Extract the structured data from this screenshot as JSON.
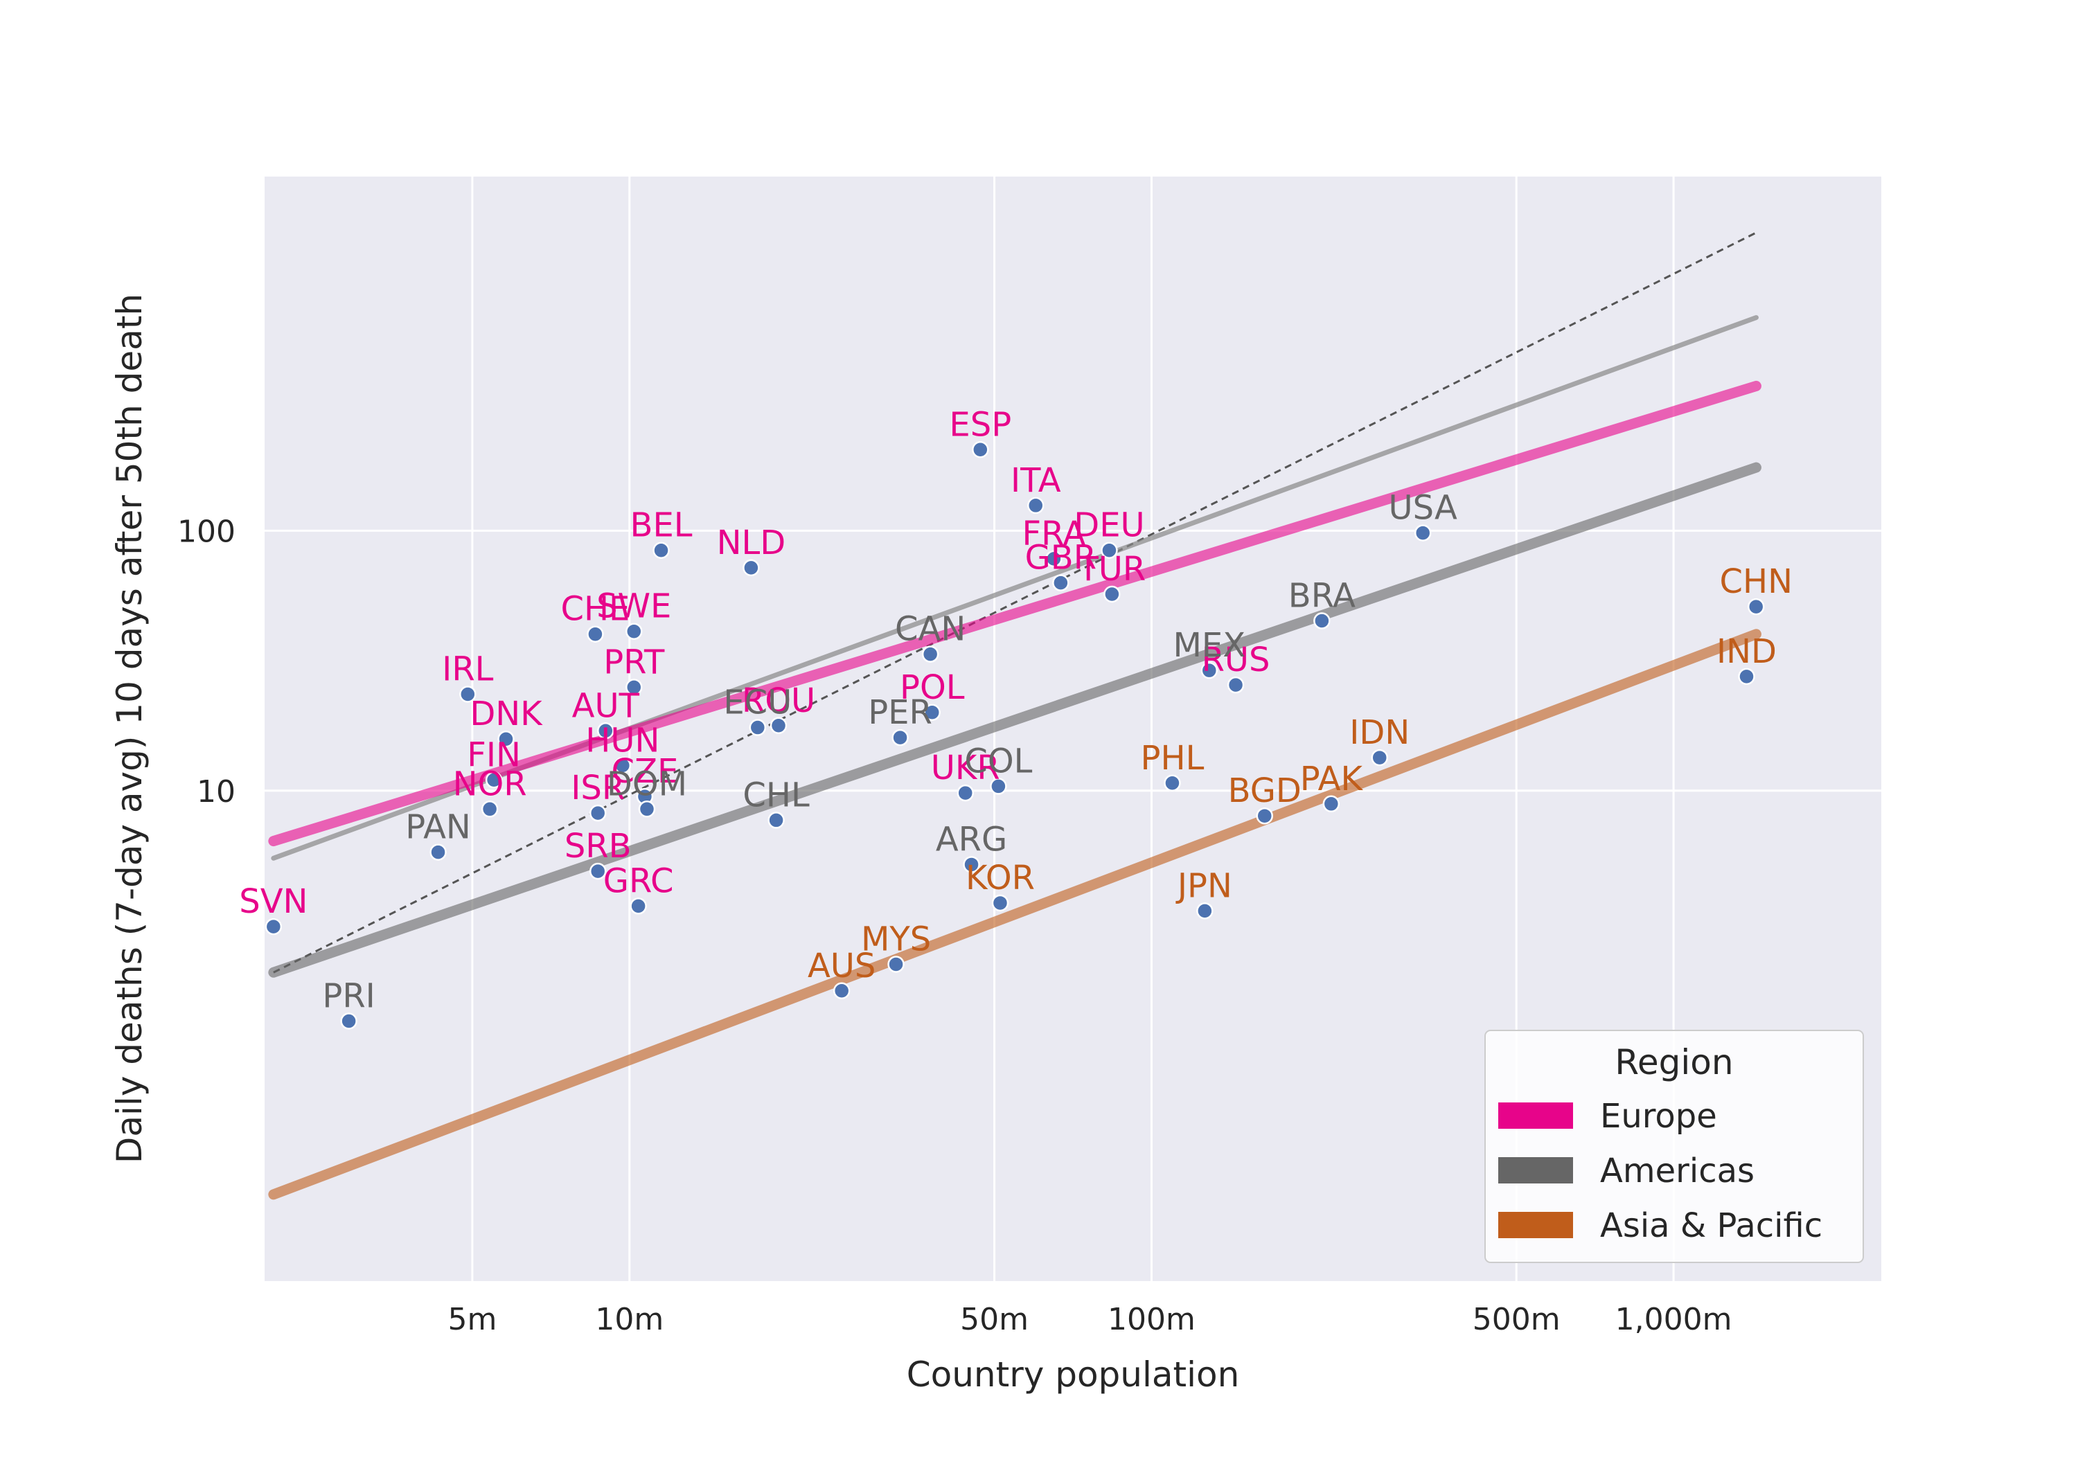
{
  "chart_data": {
    "type": "scatter",
    "title": "",
    "xlabel": "Country population",
    "ylabel": "Daily deaths (7-day avg) 10 days after 50th death",
    "x_scale": "log",
    "y_scale": "log",
    "xlim": [
      2000000,
      2500000000
    ],
    "ylim": [
      0.13,
      2300
    ],
    "x_ticks": [
      {
        "value": 5000000,
        "label": "5m"
      },
      {
        "value": 10000000,
        "label": "10m"
      },
      {
        "value": 50000000,
        "label": "50m"
      },
      {
        "value": 100000000,
        "label": "100m"
      },
      {
        "value": 500000000,
        "label": "500m"
      },
      {
        "value": 1000000000,
        "label": "1,000m"
      }
    ],
    "y_ticks": [
      {
        "value": 10,
        "label": "10"
      },
      {
        "value": 100,
        "label": "100"
      }
    ],
    "grid": true,
    "colors": {
      "Europe": "#e7048a",
      "Americas": "#666666",
      "Asia & Pacific": "#c05d1b",
      "marker": "#4c72b0",
      "background": "#eaeaf2",
      "grid": "#ffffff"
    },
    "legend": {
      "title": "Region",
      "position": "bottom-right",
      "entries": [
        "Europe",
        "Americas",
        "Asia & Pacific"
      ]
    },
    "points": [
      {
        "label": "SVN",
        "region": "Europe",
        "x": 2080000,
        "y": 3.0
      },
      {
        "label": "IRL",
        "region": "Europe",
        "x": 4900000,
        "y": 23.5
      },
      {
        "label": "DNK",
        "region": "Europe",
        "x": 5800000,
        "y": 15.8
      },
      {
        "label": "FIN",
        "region": "Europe",
        "x": 5500000,
        "y": 11.0
      },
      {
        "label": "NOR",
        "region": "Europe",
        "x": 5400000,
        "y": 8.5
      },
      {
        "label": "CHE",
        "region": "Europe",
        "x": 8600000,
        "y": 40.0
      },
      {
        "label": "SWE",
        "region": "Europe",
        "x": 10200000,
        "y": 41.0
      },
      {
        "label": "BEL",
        "region": "Europe",
        "x": 11500000,
        "y": 84.0
      },
      {
        "label": "NLD",
        "region": "Europe",
        "x": 17100000,
        "y": 72.0
      },
      {
        "label": "PRT",
        "region": "Europe",
        "x": 10200000,
        "y": 25.0
      },
      {
        "label": "AUT",
        "region": "Europe",
        "x": 9000000,
        "y": 17.0
      },
      {
        "label": "HUN",
        "region": "Europe",
        "x": 9700000,
        "y": 12.5
      },
      {
        "label": "CZE",
        "region": "Europe",
        "x": 10700000,
        "y": 9.5
      },
      {
        "label": "ISR",
        "region": "Europe",
        "x": 8700000,
        "y": 8.2
      },
      {
        "label": "SRB",
        "region": "Europe",
        "x": 8700000,
        "y": 4.9
      },
      {
        "label": "GRC",
        "region": "Europe",
        "x": 10400000,
        "y": 3.6
      },
      {
        "label": "ROU",
        "region": "Europe",
        "x": 19300000,
        "y": 17.8
      },
      {
        "label": "POL",
        "region": "Europe",
        "x": 38000000,
        "y": 20.0
      },
      {
        "label": "UKR",
        "region": "Europe",
        "x": 44000000,
        "y": 9.8
      },
      {
        "label": "ESP",
        "region": "Europe",
        "x": 47000000,
        "y": 205.0
      },
      {
        "label": "ITA",
        "region": "Europe",
        "x": 60000000,
        "y": 125.0
      },
      {
        "label": "FRA",
        "region": "Europe",
        "x": 65000000,
        "y": 78.0
      },
      {
        "label": "GBR",
        "region": "Europe",
        "x": 67000000,
        "y": 63.0
      },
      {
        "label": "DEU",
        "region": "Europe",
        "x": 83000000,
        "y": 84.0
      },
      {
        "label": "TUR",
        "region": "Europe",
        "x": 84000000,
        "y": 57.0
      },
      {
        "label": "RUS",
        "region": "Europe",
        "x": 145000000,
        "y": 25.5
      },
      {
        "label": "PAN",
        "region": "Americas",
        "x": 4300000,
        "y": 5.8
      },
      {
        "label": "PRI",
        "region": "Americas",
        "x": 2900000,
        "y": 1.3
      },
      {
        "label": "DOM",
        "region": "Americas",
        "x": 10800000,
        "y": 8.5
      },
      {
        "label": "ECU",
        "region": "Americas",
        "x": 17600000,
        "y": 17.5
      },
      {
        "label": "CHL",
        "region": "Americas",
        "x": 19100000,
        "y": 7.7
      },
      {
        "label": "PER",
        "region": "Americas",
        "x": 33000000,
        "y": 16.0
      },
      {
        "label": "CAN",
        "region": "Americas",
        "x": 37700000,
        "y": 33.5
      },
      {
        "label": "ARG",
        "region": "Americas",
        "x": 45200000,
        "y": 5.2
      },
      {
        "label": "COL",
        "region": "Americas",
        "x": 50900000,
        "y": 10.4
      },
      {
        "label": "MEX",
        "region": "Americas",
        "x": 129000000,
        "y": 29.0
      },
      {
        "label": "BRA",
        "region": "Americas",
        "x": 212000000,
        "y": 45.0
      },
      {
        "label": "USA",
        "region": "Americas",
        "x": 331000000,
        "y": 98.0
      },
      {
        "label": "AUS",
        "region": "Asia & Pacific",
        "x": 25500000,
        "y": 1.7
      },
      {
        "label": "MYS",
        "region": "Asia & Pacific",
        "x": 32400000,
        "y": 2.15
      },
      {
        "label": "KOR",
        "region": "Asia & Pacific",
        "x": 51300000,
        "y": 3.7
      },
      {
        "label": "PHL",
        "region": "Asia & Pacific",
        "x": 109600000,
        "y": 10.7
      },
      {
        "label": "JPN",
        "region": "Asia & Pacific",
        "x": 126500000,
        "y": 3.45
      },
      {
        "label": "BGD",
        "region": "Asia & Pacific",
        "x": 164700000,
        "y": 8.0
      },
      {
        "label": "PAK",
        "region": "Asia & Pacific",
        "x": 220900000,
        "y": 8.9
      },
      {
        "label": "IDN",
        "region": "Asia & Pacific",
        "x": 273500000,
        "y": 13.4
      },
      {
        "label": "IND",
        "region": "Asia & Pacific",
        "x": 1380000000,
        "y": 27.5
      },
      {
        "label": "CHN",
        "region": "Asia & Pacific",
        "x": 1439000000,
        "y": 51.0
      }
    ],
    "trend_lines": [
      {
        "region": "Europe",
        "x": [
          2080000,
          1440000000
        ],
        "y": [
          6.4,
          360.0
        ]
      },
      {
        "region": "Americas",
        "x": [
          2080000,
          1440000000
        ],
        "y": [
          2.0,
          175.0
        ]
      },
      {
        "region": "Asia & Pacific",
        "x": [
          2080000,
          1440000000
        ],
        "y": [
          0.28,
          40.0
        ]
      },
      {
        "region": "All",
        "x": [
          2080000,
          1440000000
        ],
        "y": [
          5.5,
          660.0
        ]
      }
    ],
    "reference_line": {
      "x": [
        2080000,
        1440000000
      ],
      "y": [
        2.0,
        1400.0
      ]
    }
  }
}
